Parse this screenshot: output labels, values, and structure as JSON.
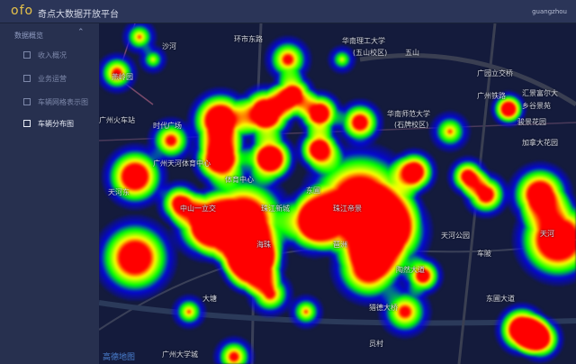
{
  "header": {
    "logo": "ofo",
    "title": "奇点大数据开放平台",
    "user": "guangzhou"
  },
  "sidebar": {
    "group": "数据概览",
    "items": [
      {
        "label": "收入概况"
      },
      {
        "label": "业务运营"
      },
      {
        "label": "车辆网格表示图"
      },
      {
        "label": "车辆分布图",
        "active": true
      }
    ]
  },
  "map": {
    "labels": [
      "沙河",
      "燕岭园",
      "广州火车站",
      "时代广场",
      "环市东路",
      "华南理工大学",
      "(五山校区)",
      "五山",
      "广园立交桥",
      "广州铁路",
      "汇景富尔大",
      "乡谷景苑",
      "骏景花园",
      "加拿大花园",
      "华南师范大学",
      "(石牌校区)",
      "广州天河体育中心",
      "体育中心",
      "天河东",
      "天河公园",
      "中山一立交",
      "珠江新城",
      "东圃",
      "海珠",
      "大塘",
      "猎德大桥",
      "琶洲",
      "广州大学城",
      "珠江帝景",
      "陶然大道",
      "天河",
      "东圃大道",
      "车陂",
      "员村"
    ],
    "brand": "高德地图"
  }
}
